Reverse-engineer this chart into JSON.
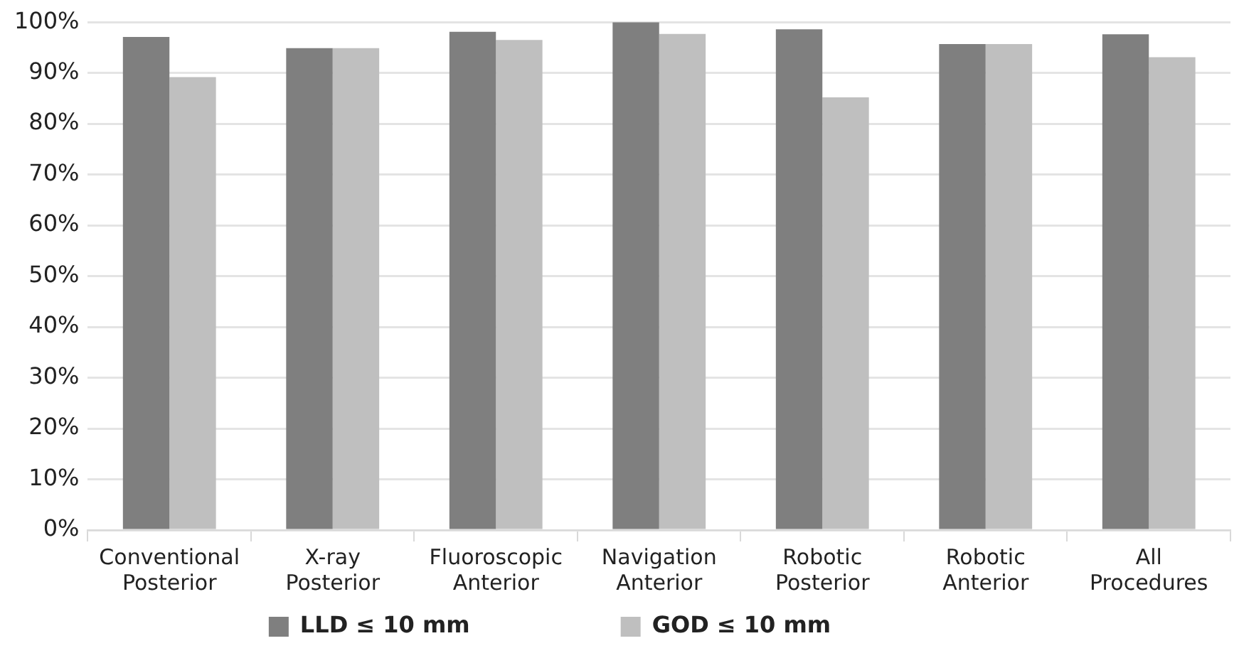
{
  "chart_data": {
    "type": "bar",
    "categories": [
      "Conventional Posterior",
      "X-ray Posterior",
      "Fluoroscopic Anterior",
      "Navigation Anterior",
      "Robotic Posterior",
      "Robotic Anterior",
      "All Procedures"
    ],
    "series": [
      {
        "name": "LLD ≤ 10 mm",
        "color": "#7f7f7f",
        "values": [
          97.1,
          94.9,
          98.1,
          100,
          98.6,
          95.7,
          97.6
        ]
      },
      {
        "name": "GOD ≤ 10 mm",
        "color": "#bfbfbf",
        "values": [
          89.2,
          94.9,
          96.5,
          97.7,
          85.2,
          95.7,
          93.1
        ]
      }
    ],
    "ylim": [
      0,
      100
    ],
    "yticks": [
      {
        "value": 0,
        "label": "0%"
      },
      {
        "value": 10,
        "label": "10%"
      },
      {
        "value": 20,
        "label": "20%"
      },
      {
        "value": 30,
        "label": "30%"
      },
      {
        "value": 40,
        "label": "40%"
      },
      {
        "value": 50,
        "label": "50%"
      },
      {
        "value": 60,
        "label": "60%"
      },
      {
        "value": 70,
        "label": "70%"
      },
      {
        "value": 80,
        "label": "80%"
      },
      {
        "value": 90,
        "label": "90%"
      },
      {
        "value": 100,
        "label": "100%"
      }
    ],
    "grid": "y",
    "legend": "bottom"
  }
}
